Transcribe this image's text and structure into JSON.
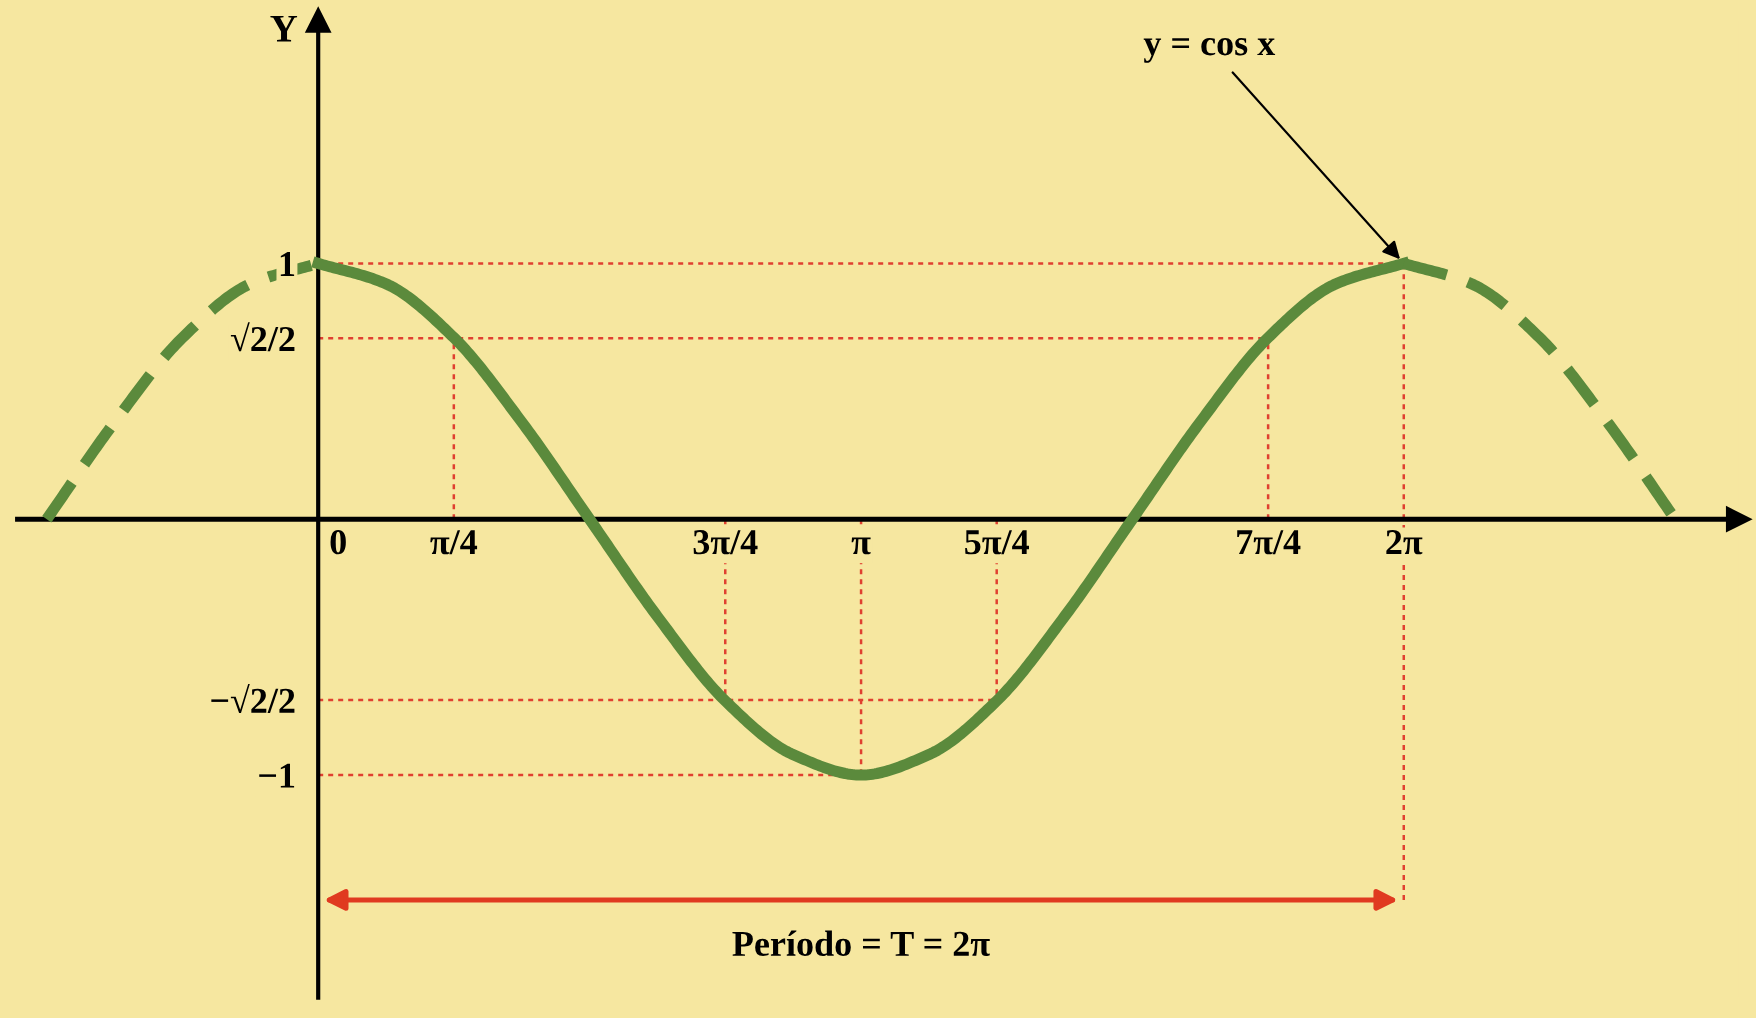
{
  "chart_data": {
    "type": "line",
    "ylabel": "Y",
    "xlim": [
      -1.74,
      8.22
    ],
    "ylim": [
      -1.87,
      1.95
    ],
    "xticks": [
      {
        "value": 0,
        "label": "0"
      },
      {
        "value": 0.785,
        "label": "π/4"
      },
      {
        "value": 2.356,
        "label": "3π/4"
      },
      {
        "value": 3.142,
        "label": "π"
      },
      {
        "value": 3.927,
        "label": "5π/4"
      },
      {
        "value": 5.498,
        "label": "7π/4"
      },
      {
        "value": 6.283,
        "label": "2π"
      }
    ],
    "yticks": [
      1,
      {
        "value": 0.707,
        "label": "√2/2"
      },
      {
        "value": -0.707,
        "label": "−√2/2"
      },
      {
        "value": -1,
        "label": "−1"
      }
    ],
    "series": [
      {
        "color": "#5b8a3c",
        "line_style": "dashed",
        "x": [
          -1.571,
          -1.178,
          -0.785,
          -0.393,
          0
        ],
        "values": [
          0,
          0.38,
          0.71,
          0.92,
          1
        ]
      },
      {
        "color": "#5b8a3c",
        "line_style": "solid",
        "x": [
          0,
          0.393,
          0.785,
          1.178,
          1.571,
          1.963,
          2.356,
          2.749,
          3.142,
          3.534,
          3.927,
          4.32,
          4.712,
          5.105,
          5.498,
          5.89,
          6.283
        ],
        "values": [
          1,
          0.92,
          0.71,
          0.38,
          0,
          -0.38,
          -0.71,
          -0.92,
          -1,
          -0.92,
          -0.71,
          -0.38,
          0,
          0.38,
          0.71,
          0.92,
          1
        ]
      },
      {
        "color": "#5b8a3c",
        "line_style": "dashed",
        "x": [
          6.283,
          6.676,
          7.069,
          7.461,
          7.854
        ],
        "values": [
          1,
          0.92,
          0.71,
          0.38,
          0
        ]
      }
    ],
    "ref_lines": [
      {
        "axis": "y",
        "value": 1,
        "color": "#e04030",
        "line_style": "dotted"
      },
      {
        "axis": "y",
        "value": 0.707,
        "color": "#e04030",
        "line_style": "dotted"
      },
      {
        "axis": "y",
        "value": -0.707,
        "color": "#e04030",
        "line_style": "dotted"
      },
      {
        "axis": "y",
        "value": -1,
        "color": "#e04030",
        "line_style": "dotted"
      },
      {
        "axis": "x",
        "value": 0.785,
        "color": "#e04030",
        "line_style": "dotted"
      },
      {
        "axis": "x",
        "value": 2.356,
        "color": "#e04030",
        "line_style": "dotted"
      },
      {
        "axis": "x",
        "value": 3.142,
        "color": "#e04030",
        "line_style": "dotted"
      },
      {
        "axis": "x",
        "value": 3.927,
        "color": "#e04030",
        "line_style": "dotted"
      },
      {
        "axis": "x",
        "value": 5.498,
        "color": "#e04030",
        "line_style": "dotted"
      },
      {
        "axis": "x",
        "value": 6.283,
        "color": "#e04030",
        "line_style": "dotted"
      }
    ],
    "annotations": [
      {
        "text": "y = cos x",
        "x": 6.283,
        "y": 1
      },
      "Período = T = 2π"
    ],
    "grid": false,
    "legend": false,
    "marker": "none"
  }
}
